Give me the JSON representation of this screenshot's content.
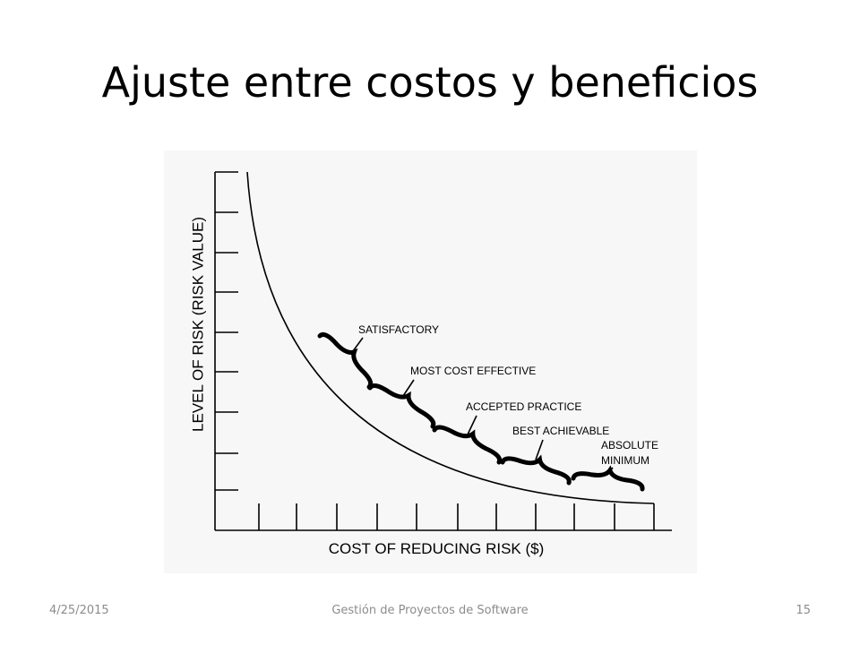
{
  "title": "Ajuste entre costos y beneficios",
  "figure": {
    "y_axis_label": "LEVEL OF RISK (RISK VALUE)",
    "x_axis_label": "COST OF REDUCING RISK ($)",
    "annotations": [
      "SATISFACTORY",
      "MOST COST EFFECTIVE",
      "ACCEPTED PRACTICE",
      "BEST ACHIEVABLE",
      [
        "ABSOLUTE",
        "MINIMUM"
      ]
    ]
  },
  "footer": {
    "date": "4/25/2015",
    "center": "Gestión de Proyectos de Software",
    "page": "15"
  }
}
